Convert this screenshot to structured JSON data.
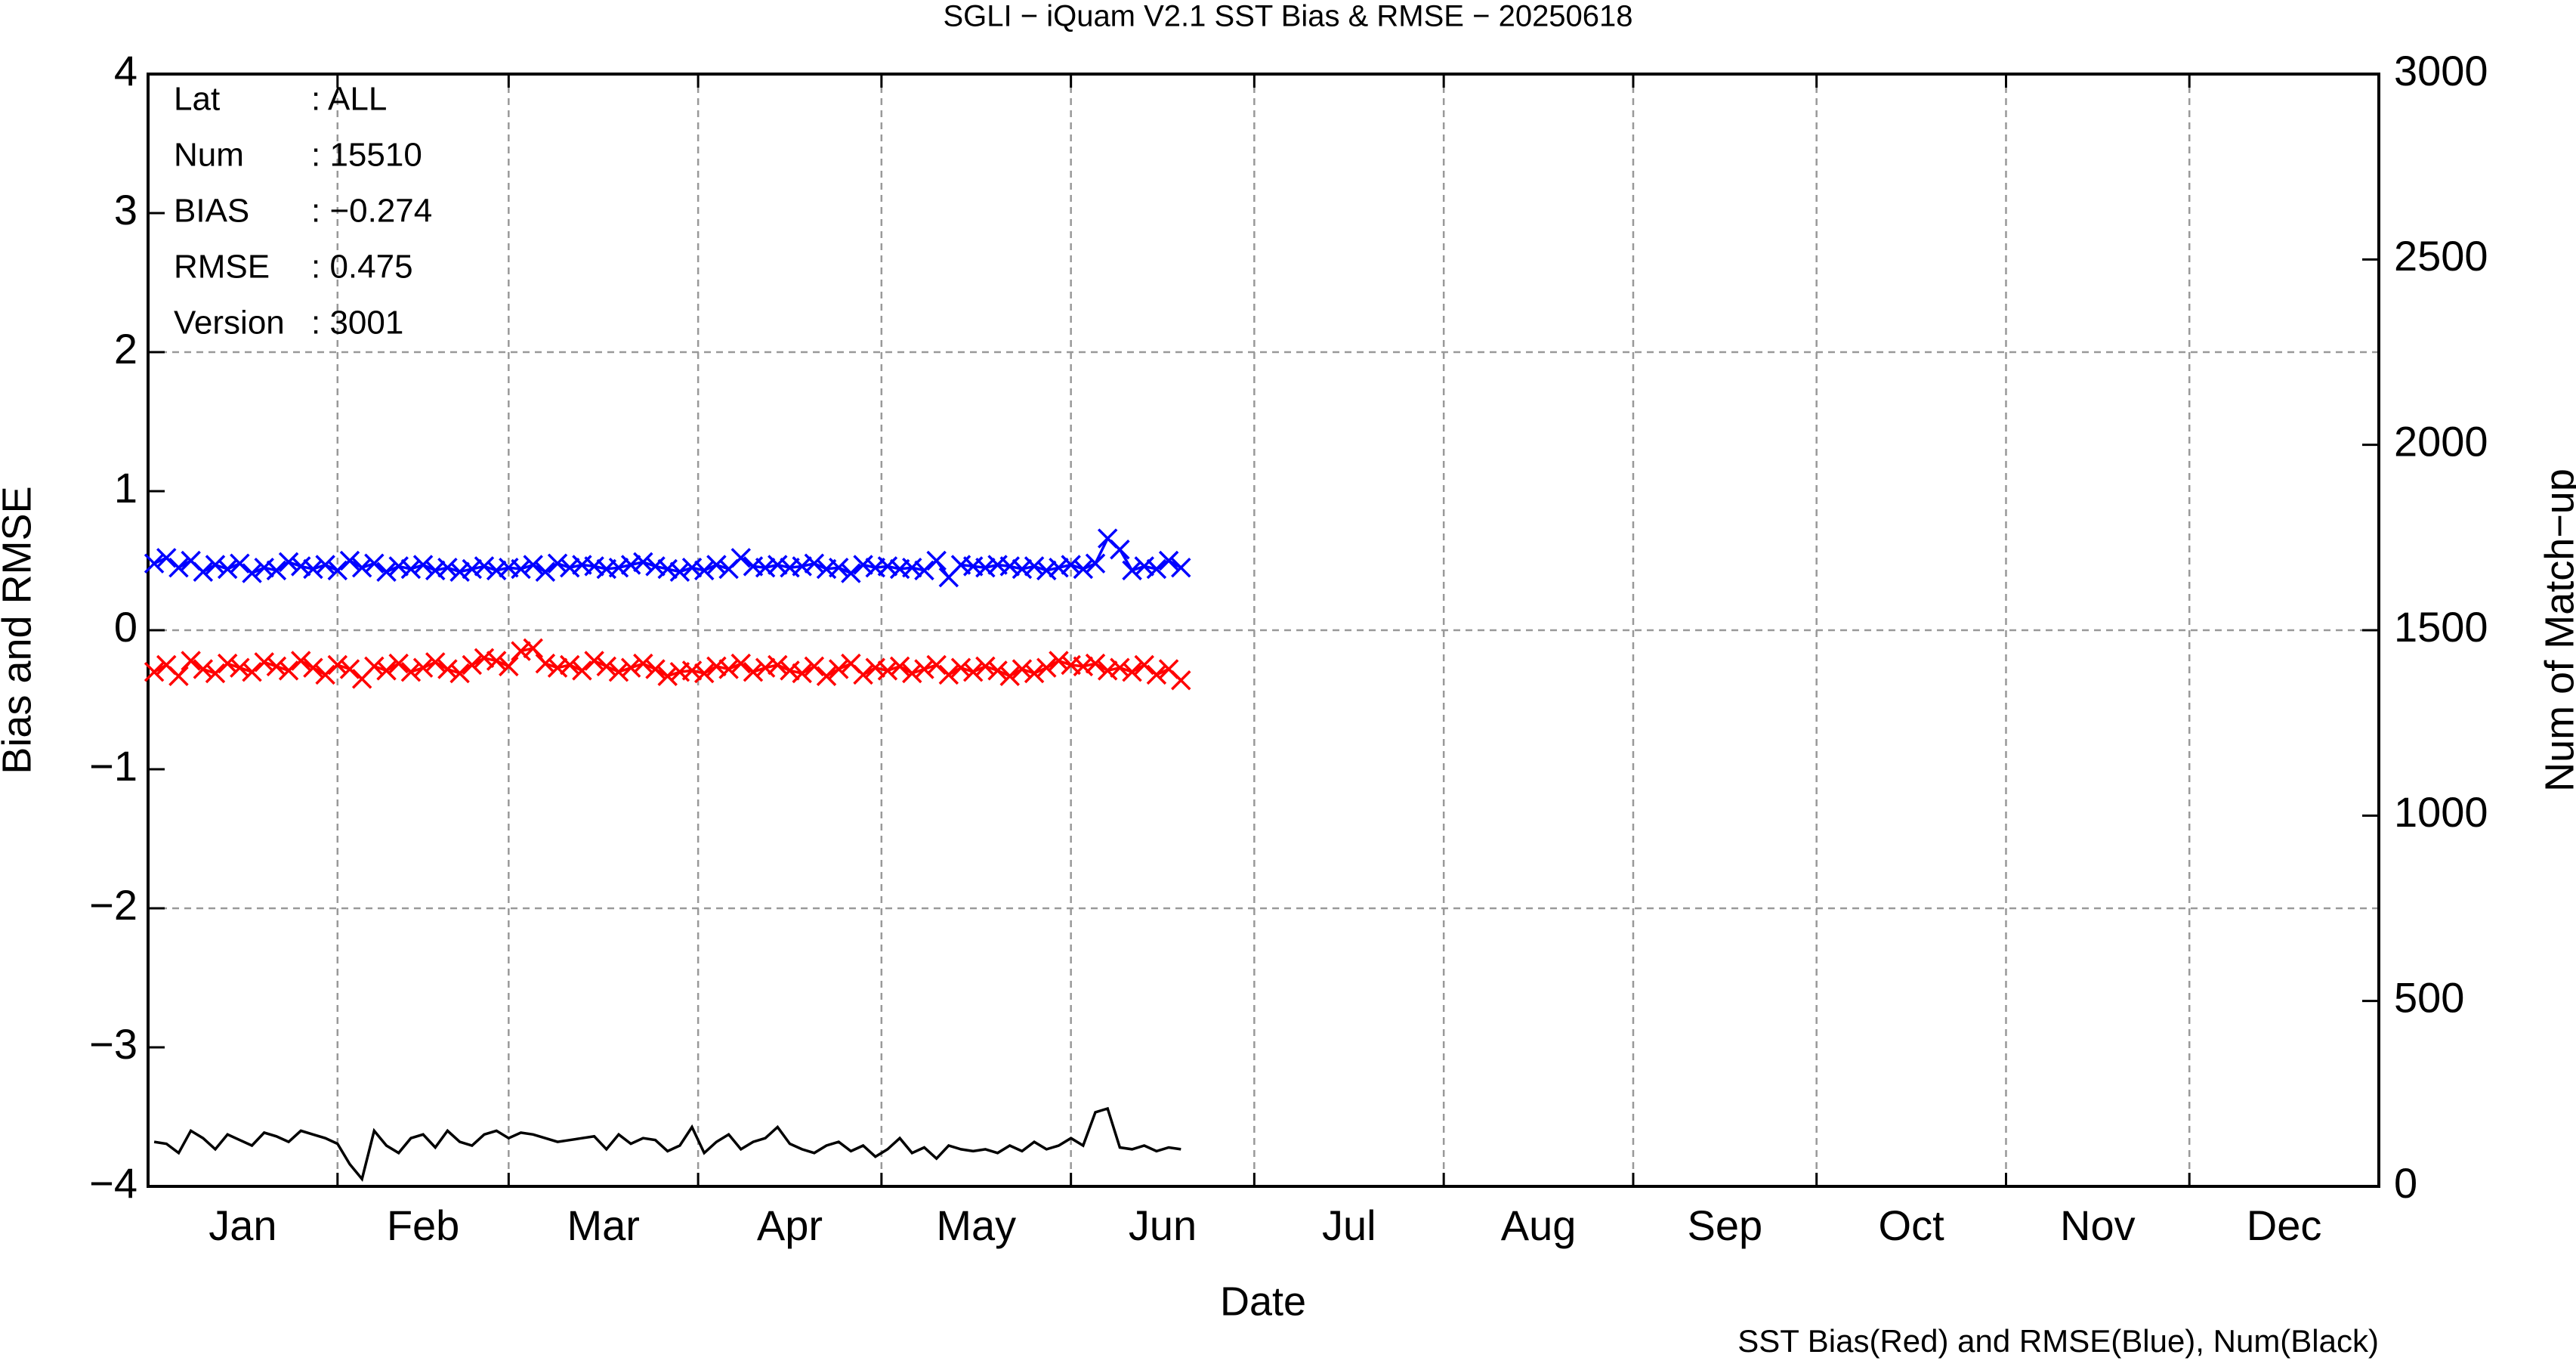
{
  "chart_data": {
    "type": "line",
    "title": "SGLI − iQuam V2.1 SST Bias & RMSE  − 20250618",
    "xlabel": "Date",
    "ylabel": "Bias and RMSE",
    "y2label": "Num of Match−up",
    "note": "SST Bias(Red) and RMSE(Blue), Num(Black)",
    "stats": [
      {
        "label": "Lat",
        "value": ": ALL"
      },
      {
        "label": "Num",
        "value": ": 15510"
      },
      {
        "label": "BIAS",
        "value": ": −0.274"
      },
      {
        "label": "RMSE",
        "value": ": 0.475"
      },
      {
        "label": "Version",
        "value": ": 3001"
      }
    ],
    "categories": [
      "Jan",
      "Feb",
      "Mar",
      "Apr",
      "May",
      "Jun",
      "Jul",
      "Aug",
      "Sep",
      "Oct",
      "Nov",
      "Dec"
    ],
    "xlim": [
      0,
      365
    ],
    "xticks": [
      0,
      31,
      59,
      90,
      120,
      151,
      181,
      212,
      243,
      273,
      304,
      334,
      365
    ],
    "ylim": [
      -4,
      4
    ],
    "yticks": [
      {
        "value": -4,
        "label": "−4"
      },
      {
        "value": -3,
        "label": "−3"
      },
      {
        "value": -2,
        "label": "−2"
      },
      {
        "value": -1,
        "label": "−1"
      },
      0,
      1,
      2,
      3,
      4
    ],
    "ygrid": [
      -2,
      0,
      2
    ],
    "y2lim": [
      0,
      3000
    ],
    "y2ticks": [
      0,
      500,
      1000,
      1500,
      2000,
      2500,
      3000
    ],
    "grid": true,
    "x": [
      1,
      3,
      5,
      7,
      9,
      11,
      13,
      15,
      17,
      19,
      21,
      23,
      25,
      27,
      29,
      31,
      33,
      35,
      37,
      39,
      41,
      43,
      45,
      47,
      49,
      51,
      53,
      55,
      57,
      59,
      61,
      63,
      65,
      67,
      69,
      71,
      73,
      75,
      77,
      79,
      81,
      83,
      85,
      87,
      89,
      91,
      93,
      95,
      97,
      99,
      101,
      103,
      105,
      107,
      109,
      111,
      113,
      115,
      117,
      119,
      121,
      123,
      125,
      127,
      129,
      131,
      133,
      135,
      137,
      139,
      141,
      143,
      145,
      147,
      149,
      151,
      153,
      155,
      157,
      159,
      161,
      163,
      165,
      167,
      169
    ],
    "series": [
      {
        "name": "RMSE",
        "color": "#0000ff",
        "marker": true,
        "values": [
          0.48,
          0.52,
          0.45,
          0.5,
          0.42,
          0.47,
          0.44,
          0.48,
          0.41,
          0.45,
          0.43,
          0.49,
          0.46,
          0.44,
          0.47,
          0.43,
          0.5,
          0.45,
          0.48,
          0.42,
          0.46,
          0.44,
          0.47,
          0.43,
          0.45,
          0.42,
          0.44,
          0.46,
          0.43,
          0.45,
          0.44,
          0.47,
          0.42,
          0.48,
          0.45,
          0.47,
          0.46,
          0.44,
          0.45,
          0.47,
          0.49,
          0.46,
          0.44,
          0.42,
          0.45,
          0.43,
          0.47,
          0.44,
          0.52,
          0.46,
          0.45,
          0.47,
          0.45,
          0.46,
          0.48,
          0.44,
          0.45,
          0.41,
          0.47,
          0.45,
          0.46,
          0.44,
          0.45,
          0.43,
          0.5,
          0.38,
          0.47,
          0.46,
          0.45,
          0.47,
          0.46,
          0.44,
          0.46,
          0.43,
          0.45,
          0.47,
          0.44,
          0.48,
          0.66,
          0.58,
          0.43,
          0.46,
          0.44,
          0.5,
          0.45
        ]
      },
      {
        "name": "Bias",
        "color": "#ff0000",
        "marker": true,
        "values": [
          -0.3,
          -0.25,
          -0.33,
          -0.22,
          -0.28,
          -0.31,
          -0.24,
          -0.27,
          -0.3,
          -0.23,
          -0.26,
          -0.29,
          -0.22,
          -0.27,
          -0.32,
          -0.25,
          -0.28,
          -0.35,
          -0.26,
          -0.29,
          -0.24,
          -0.3,
          -0.27,
          -0.23,
          -0.28,
          -0.31,
          -0.25,
          -0.2,
          -0.22,
          -0.26,
          -0.15,
          -0.13,
          -0.24,
          -0.27,
          -0.25,
          -0.29,
          -0.22,
          -0.26,
          -0.3,
          -0.27,
          -0.24,
          -0.28,
          -0.33,
          -0.3,
          -0.29,
          -0.31,
          -0.26,
          -0.28,
          -0.24,
          -0.3,
          -0.27,
          -0.25,
          -0.29,
          -0.31,
          -0.26,
          -0.33,
          -0.28,
          -0.24,
          -0.32,
          -0.27,
          -0.29,
          -0.26,
          -0.31,
          -0.28,
          -0.25,
          -0.32,
          -0.27,
          -0.3,
          -0.26,
          -0.29,
          -0.33,
          -0.28,
          -0.31,
          -0.27,
          -0.22,
          -0.25,
          -0.26,
          -0.24,
          -0.29,
          -0.27,
          -0.3,
          -0.25,
          -0.32,
          -0.28,
          -0.36
        ]
      },
      {
        "name": "Num",
        "color": "#000000",
        "marker": false,
        "axis": "y2",
        "values": [
          120,
          115,
          90,
          150,
          130,
          100,
          140,
          125,
          110,
          145,
          135,
          120,
          150,
          140,
          130,
          115,
          60,
          20,
          150,
          110,
          90,
          130,
          140,
          105,
          150,
          120,
          110,
          140,
          150,
          130,
          145,
          140,
          130,
          120,
          125,
          130,
          135,
          100,
          140,
          115,
          130,
          125,
          95,
          110,
          160,
          90,
          120,
          140,
          100,
          120,
          130,
          160,
          115,
          100,
          90,
          110,
          120,
          95,
          110,
          80,
          100,
          130,
          90,
          105,
          75,
          110,
          100,
          95,
          100,
          90,
          110,
          95,
          120,
          100,
          110,
          130,
          110,
          200,
          210,
          105,
          100,
          110,
          95,
          105,
          100
        ]
      }
    ]
  }
}
